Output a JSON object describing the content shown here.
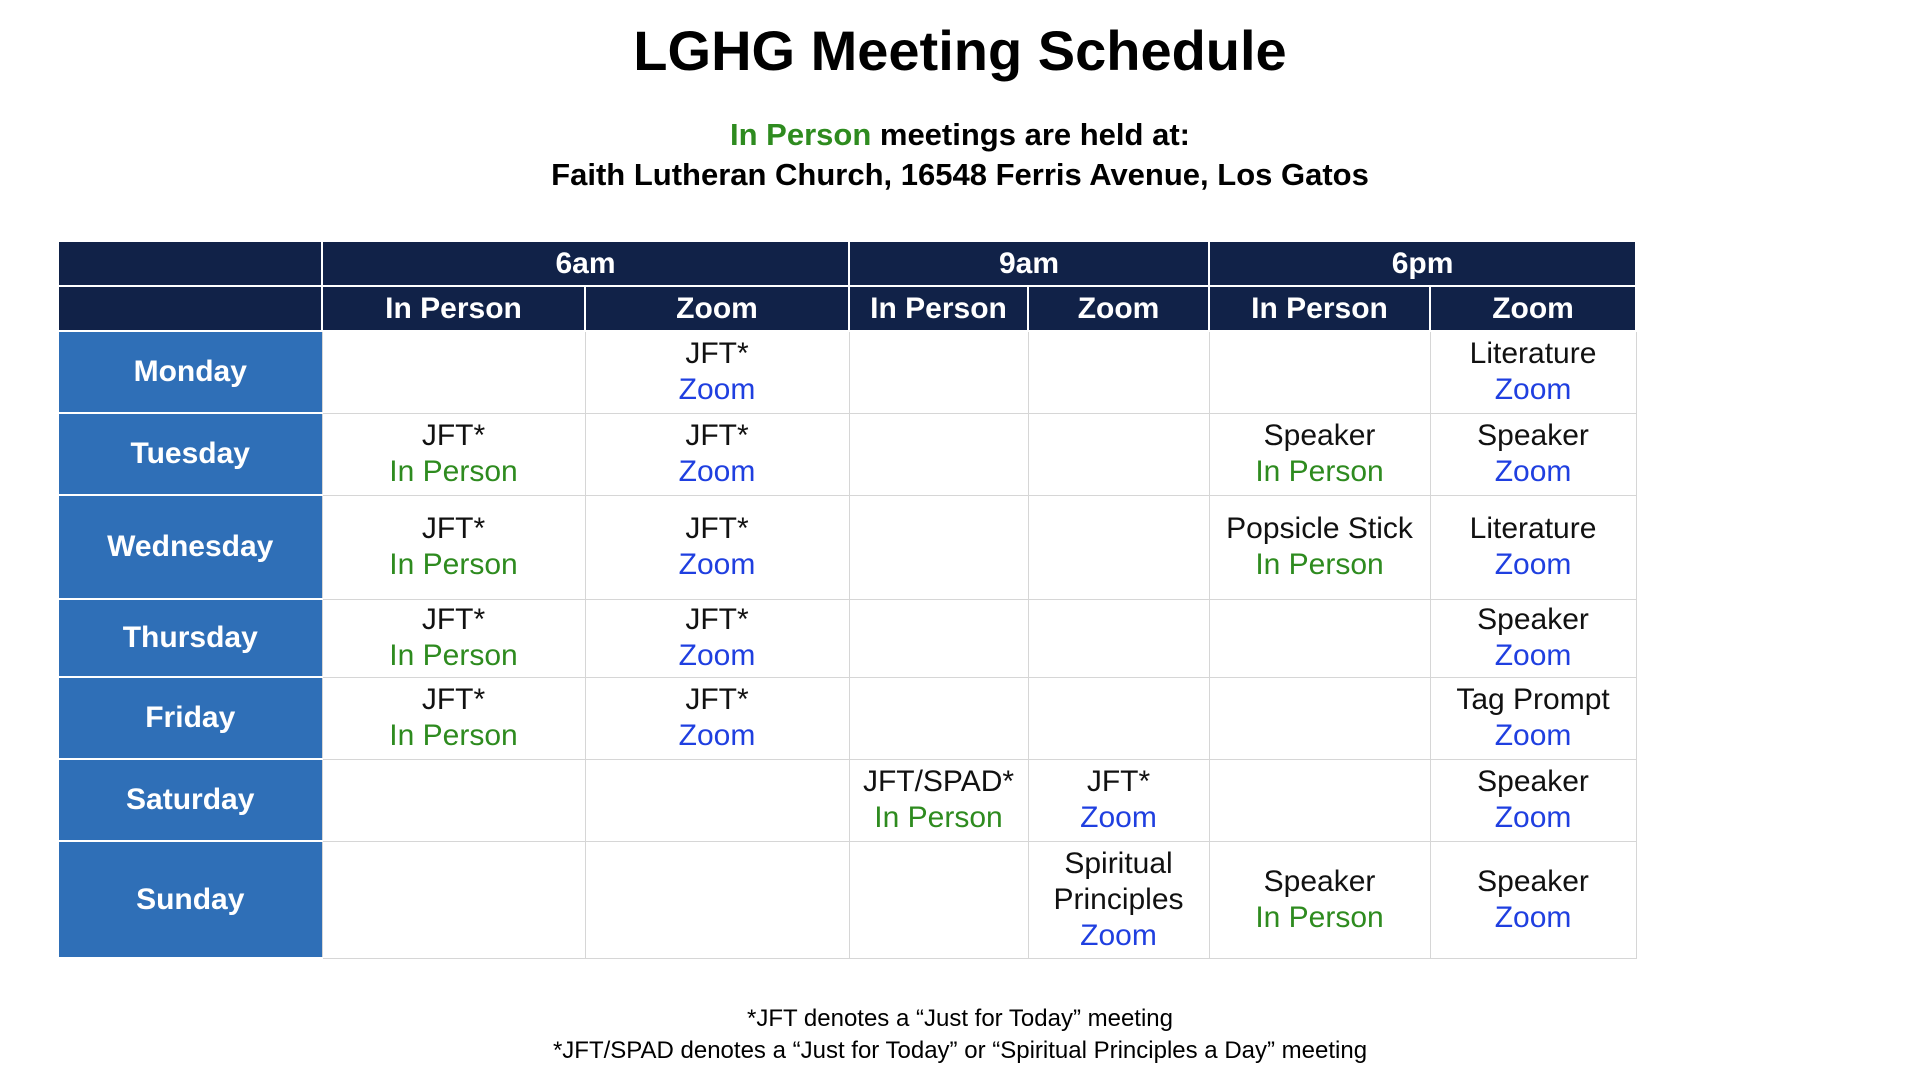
{
  "title": "LGHG Meeting Schedule",
  "location": {
    "highlight": "In Person",
    "text_after": " meetings are held at:",
    "address": "Faith Lutheran Church, 16548 Ferris Avenue, Los Gatos"
  },
  "colors": {
    "header_bg": "#112248",
    "day_bg": "#2f6fb7",
    "in_person": "#2e8b1f",
    "zoom": "#1f3fe0"
  },
  "table": {
    "time_headers": [
      "6am",
      "9am",
      "6pm"
    ],
    "sub_headers": [
      "In Person",
      "Zoom",
      "In Person",
      "Zoom",
      "In Person",
      "Zoom"
    ],
    "rows": [
      {
        "day": "Monday",
        "cells": [
          null,
          {
            "meeting": "JFT*",
            "location": "Zoom"
          },
          null,
          null,
          null,
          {
            "meeting": "Literature",
            "location": "Zoom"
          }
        ]
      },
      {
        "day": "Tuesday",
        "cells": [
          {
            "meeting": "JFT*",
            "location": "In Person"
          },
          {
            "meeting": "JFT*",
            "location": "Zoom"
          },
          null,
          null,
          {
            "meeting": "Speaker",
            "location": "In Person"
          },
          {
            "meeting": "Speaker",
            "location": "Zoom"
          }
        ]
      },
      {
        "day": "Wednesday",
        "cells": [
          {
            "meeting": "JFT*",
            "location": "In Person"
          },
          {
            "meeting": "JFT*",
            "location": "Zoom"
          },
          null,
          null,
          {
            "meeting": "Popsicle Stick",
            "location": "In Person"
          },
          {
            "meeting": "Literature",
            "location": "Zoom"
          }
        ]
      },
      {
        "day": "Thursday",
        "cells": [
          {
            "meeting": "JFT*",
            "location": "In Person"
          },
          {
            "meeting": "JFT*",
            "location": "Zoom"
          },
          null,
          null,
          null,
          {
            "meeting": "Speaker",
            "location": "Zoom"
          }
        ]
      },
      {
        "day": "Friday",
        "cells": [
          {
            "meeting": "JFT*",
            "location": "In Person"
          },
          {
            "meeting": "JFT*",
            "location": "Zoom"
          },
          null,
          null,
          null,
          {
            "meeting": "Tag Prompt",
            "location": "Zoom"
          }
        ]
      },
      {
        "day": "Saturday",
        "cells": [
          null,
          null,
          {
            "meeting": "JFT/SPAD*",
            "location": "In Person"
          },
          {
            "meeting": "JFT*",
            "location": "Zoom"
          },
          null,
          {
            "meeting": "Speaker",
            "location": "Zoom"
          }
        ]
      },
      {
        "day": "Sunday",
        "cells": [
          null,
          null,
          null,
          {
            "meeting": "Spiritual Principles",
            "location": "Zoom"
          },
          {
            "meeting": "Speaker",
            "location": "In Person"
          },
          {
            "meeting": "Speaker",
            "location": "Zoom"
          }
        ]
      }
    ]
  },
  "footnotes": [
    "*JFT denotes a “Just for Today” meeting",
    "*JFT/SPAD denotes a “Just for Today” or “Spiritual Principles a Day” meeting"
  ]
}
